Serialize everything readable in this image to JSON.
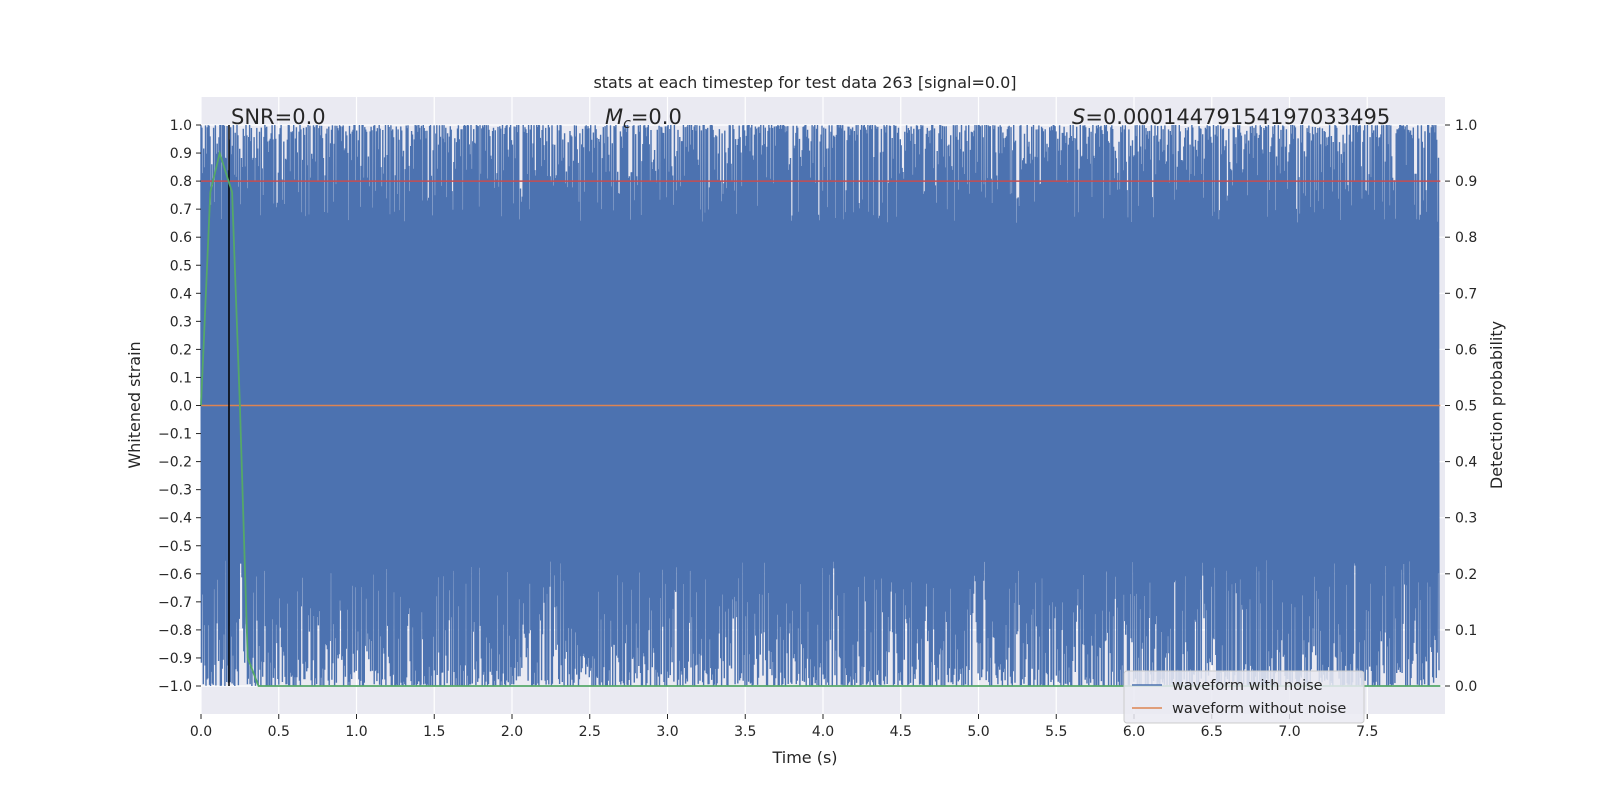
{
  "chart_data": {
    "type": "line",
    "title": "stats at each timestep for test data 263 [signal=0.0]",
    "xlabel": "Time (s)",
    "ylabel_left": "Whitened strain",
    "ylabel_right": "Detection probability",
    "xlim": [
      0.0,
      8.0
    ],
    "ylim_left": [
      -1.1,
      1.1
    ],
    "ylim_right": [
      -0.05,
      1.05
    ],
    "x_ticks": [
      "0.0",
      "0.5",
      "1.0",
      "1.5",
      "2.0",
      "2.5",
      "3.0",
      "3.5",
      "4.0",
      "4.5",
      "5.0",
      "5.5",
      "6.0",
      "6.5",
      "7.0",
      "7.5"
    ],
    "x_tick_values": [
      0.0,
      0.5,
      1.0,
      1.5,
      2.0,
      2.5,
      3.0,
      3.5,
      4.0,
      4.5,
      5.0,
      5.5,
      6.0,
      6.5,
      7.0,
      7.5
    ],
    "y_left_ticks": [
      "1.0",
      "0.9",
      "0.8",
      "0.7",
      "0.6",
      "0.5",
      "0.4",
      "0.3",
      "0.2",
      "0.1",
      "0.0",
      "−0.1",
      "−0.2",
      "−0.3",
      "−0.4",
      "−0.5",
      "−0.6",
      "−0.7",
      "−0.8",
      "−0.9",
      "−1.0"
    ],
    "y_left_tick_values": [
      1.0,
      0.9,
      0.8,
      0.7,
      0.6,
      0.5,
      0.4,
      0.3,
      0.2,
      0.1,
      0.0,
      -0.1,
      -0.2,
      -0.3,
      -0.4,
      -0.5,
      -0.6,
      -0.7,
      -0.8,
      -0.9,
      -1.0
    ],
    "y_right_ticks": [
      "1.0",
      "0.9",
      "0.8",
      "0.7",
      "0.6",
      "0.5",
      "0.4",
      "0.3",
      "0.2",
      "0.1",
      "0.0"
    ],
    "y_right_tick_values": [
      1.0,
      0.9,
      0.8,
      0.7,
      0.6,
      0.5,
      0.4,
      0.3,
      0.2,
      0.1,
      0.0
    ],
    "annotations": {
      "snr": "SNR=0.0",
      "mc_symbol": "M",
      "mc_sub": "c",
      "mc_value": "=0.0",
      "s_symbol": "S",
      "s_value": "=0.00014479154197033495"
    },
    "grid": true,
    "legend_position": "lower right",
    "series": [
      {
        "name": "waveform with noise",
        "color": "#4c72b0",
        "description_range": [
          -1.0,
          1.0
        ]
      },
      {
        "name": "waveform without noise",
        "color": "#dd8452",
        "x": [
          0.0,
          7.97
        ],
        "y": [
          0.0,
          0.0
        ]
      },
      {
        "color": "#55a868",
        "axis": "right",
        "x": [
          0.0,
          0.06,
          0.12,
          0.2,
          0.25,
          0.3,
          0.37,
          7.97
        ],
        "y": [
          0.5,
          0.88,
          0.95,
          0.88,
          0.5,
          0.05,
          0.0,
          0.0
        ]
      }
    ],
    "threshold_line": {
      "color": "#c44e52",
      "axis": "right",
      "value": 0.9
    },
    "marker_line": {
      "color": "#000000",
      "x": 0.18
    }
  }
}
